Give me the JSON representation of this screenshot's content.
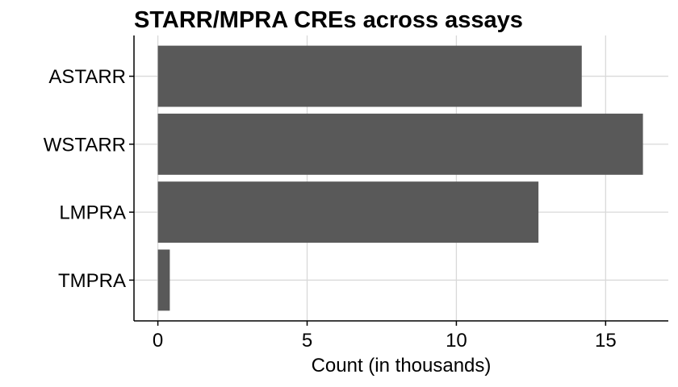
{
  "chart_data": {
    "type": "bar",
    "orientation": "horizontal",
    "title": "STARR/MPRA CREs across assays",
    "xlabel": "Count (in thousands)",
    "ylabel": "",
    "categories": [
      "ASTARR",
      "WSTARR",
      "LMPRA",
      "TMPRA"
    ],
    "values": [
      14.2,
      16.25,
      12.75,
      0.4
    ],
    "xlim": [
      -0.8,
      17.1
    ],
    "xticks": [
      0,
      5,
      10,
      15
    ],
    "xtick_labels": [
      "0",
      "5",
      "10",
      "15"
    ],
    "grid": true,
    "legend": "none",
    "bar_color": "#595959"
  }
}
